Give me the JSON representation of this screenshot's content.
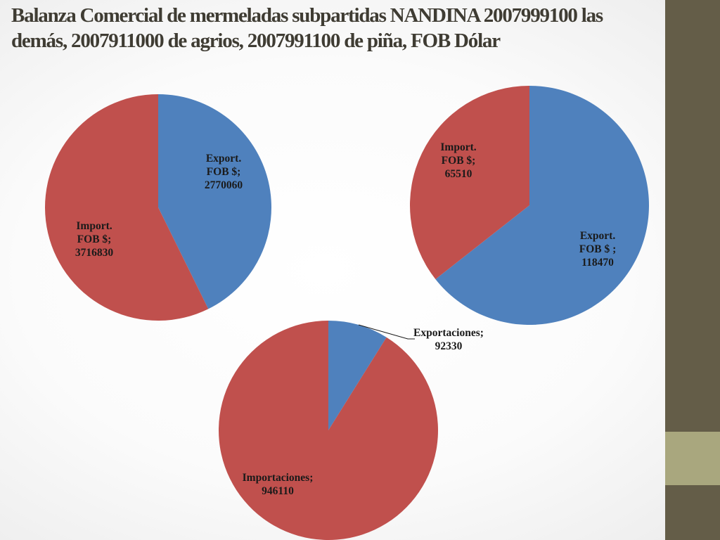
{
  "title": "Balanza Comercial de mermeladas subpartidas NANDINA 2007999100 las demás, 2007911000 de agrios, 2007991100 de piña, FOB Dólar",
  "colors": {
    "export": "#4f81bd",
    "import": "#c0504d",
    "sidebar": "#645d48",
    "sidebar_accent": "#a9a77e"
  },
  "chart_data": [
    {
      "type": "pie",
      "slices": [
        {
          "label_lines": [
            "Export.",
            "FOB $;",
            "2770060"
          ],
          "value": 2770060,
          "color": "#4f81bd"
        },
        {
          "label_lines": [
            "Import.",
            "FOB $;",
            "3716830"
          ],
          "value": 3716830,
          "color": "#c0504d"
        }
      ]
    },
    {
      "type": "pie",
      "slices": [
        {
          "label_lines": [
            "Export.",
            "FOB $ ;",
            "118470"
          ],
          "value": 118470,
          "color": "#4f81bd"
        },
        {
          "label_lines": [
            "Import.",
            "FOB $;",
            "65510"
          ],
          "value": 65510,
          "color": "#c0504d"
        }
      ]
    },
    {
      "type": "pie",
      "slices": [
        {
          "label_lines": [
            "Exportaciones;",
            "92330"
          ],
          "value": 92330,
          "color": "#4f81bd"
        },
        {
          "label_lines": [
            "Importaciones;",
            "946110"
          ],
          "value": 946110,
          "color": "#c0504d"
        }
      ]
    }
  ]
}
